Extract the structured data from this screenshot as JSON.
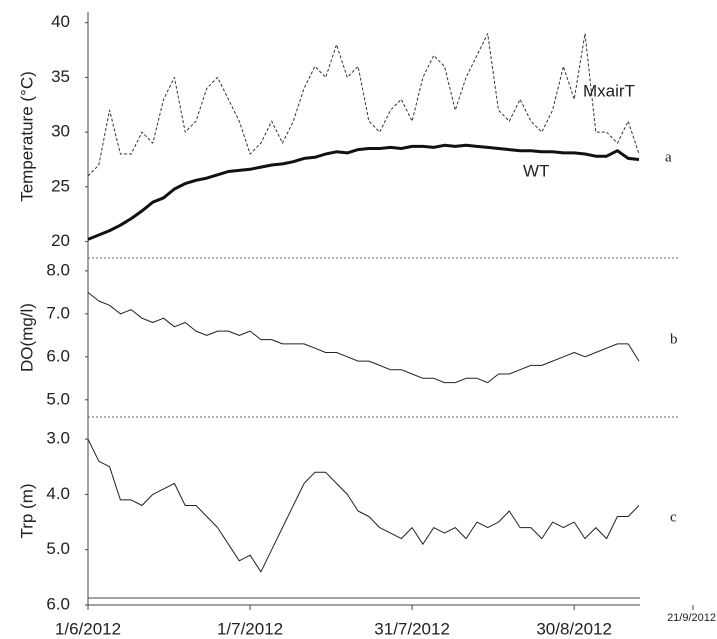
{
  "chart_data": [
    {
      "type": "line",
      "ylabel": "Temperature (°C)",
      "panel_label": "a",
      "x": [
        "2012-06-01",
        "2012-06-03",
        "2012-06-05",
        "2012-06-07",
        "2012-06-09",
        "2012-06-11",
        "2012-06-13",
        "2012-06-15",
        "2012-06-17",
        "2012-06-19",
        "2012-06-21",
        "2012-06-23",
        "2012-06-25",
        "2012-06-27",
        "2012-06-29",
        "2012-07-01",
        "2012-07-03",
        "2012-07-05",
        "2012-07-07",
        "2012-07-09",
        "2012-07-11",
        "2012-07-13",
        "2012-07-15",
        "2012-07-17",
        "2012-07-19",
        "2012-07-21",
        "2012-07-23",
        "2012-07-25",
        "2012-07-27",
        "2012-07-29",
        "2012-07-31",
        "2012-08-02",
        "2012-08-04",
        "2012-08-06",
        "2012-08-08",
        "2012-08-10",
        "2012-08-12",
        "2012-08-14",
        "2012-08-16",
        "2012-08-18",
        "2012-08-20",
        "2012-08-22",
        "2012-08-24",
        "2012-08-26",
        "2012-08-28",
        "2012-08-30",
        "2012-09-01",
        "2012-09-03",
        "2012-09-05",
        "2012-09-07",
        "2012-09-09",
        "2012-09-11"
      ],
      "xlim": [
        "2012-06-01",
        "2012-09-21"
      ],
      "ylim": [
        18.5,
        40.7
      ],
      "yticks": [
        20,
        25,
        30,
        35,
        40
      ],
      "series": [
        {
          "name": "MxairT",
          "color": "#333333",
          "line_style": "dashed",
          "line_width": 1,
          "values": [
            26,
            27,
            32,
            28,
            28,
            30,
            29,
            33,
            35,
            30,
            31,
            34,
            35,
            33,
            31,
            28,
            29,
            31,
            29,
            31,
            34,
            36,
            35,
            38,
            35,
            36,
            31,
            30,
            32,
            33,
            31,
            35,
            37,
            36,
            32,
            35,
            37,
            39,
            32,
            31,
            33,
            31,
            30,
            32,
            36,
            33,
            39,
            30,
            30,
            29,
            31,
            28
          ]
        },
        {
          "name": "WT",
          "color": "#111111",
          "line_style": "solid",
          "line_width": 3,
          "values": [
            20.2,
            20.6,
            21.0,
            21.5,
            22.1,
            22.8,
            23.6,
            24.0,
            24.8,
            25.3,
            25.6,
            25.8,
            26.1,
            26.4,
            26.5,
            26.6,
            26.8,
            27.0,
            27.1,
            27.3,
            27.6,
            27.7,
            28.0,
            28.2,
            28.1,
            28.4,
            28.5,
            28.5,
            28.6,
            28.5,
            28.7,
            28.7,
            28.6,
            28.8,
            28.7,
            28.8,
            28.7,
            28.6,
            28.5,
            28.4,
            28.3,
            28.3,
            28.2,
            28.2,
            28.1,
            28.1,
            28.0,
            27.8,
            27.8,
            28.3,
            27.6,
            27.5
          ]
        }
      ]
    },
    {
      "type": "line",
      "ylabel": "DO(mg/l)",
      "panel_label": "b",
      "x": [
        "2012-06-01",
        "2012-06-03",
        "2012-06-05",
        "2012-06-07",
        "2012-06-09",
        "2012-06-11",
        "2012-06-13",
        "2012-06-15",
        "2012-06-17",
        "2012-06-19",
        "2012-06-21",
        "2012-06-23",
        "2012-06-25",
        "2012-06-27",
        "2012-06-29",
        "2012-07-01",
        "2012-07-03",
        "2012-07-05",
        "2012-07-07",
        "2012-07-09",
        "2012-07-11",
        "2012-07-13",
        "2012-07-15",
        "2012-07-17",
        "2012-07-19",
        "2012-07-21",
        "2012-07-23",
        "2012-07-25",
        "2012-07-27",
        "2012-07-29",
        "2012-07-31",
        "2012-08-02",
        "2012-08-04",
        "2012-08-06",
        "2012-08-08",
        "2012-08-10",
        "2012-08-12",
        "2012-08-14",
        "2012-08-16",
        "2012-08-18",
        "2012-08-20",
        "2012-08-22",
        "2012-08-24",
        "2012-08-26",
        "2012-08-28",
        "2012-08-30",
        "2012-09-01",
        "2012-09-03",
        "2012-09-05",
        "2012-09-07",
        "2012-09-09",
        "2012-09-11"
      ],
      "xlim": [
        "2012-06-01",
        "2012-09-21"
      ],
      "ylim": [
        4.6,
        8.3
      ],
      "yticks": [
        {
          "value": 5,
          "label": "5.0"
        },
        {
          "value": 6,
          "label": "6.0"
        },
        {
          "value": 7,
          "label": "7.0"
        },
        {
          "value": 8,
          "label": "8.0"
        }
      ],
      "series": [
        {
          "color": "#222222",
          "line_style": "solid",
          "line_width": 1,
          "values": [
            7.5,
            7.3,
            7.2,
            7.0,
            7.1,
            6.9,
            6.8,
            6.9,
            6.7,
            6.8,
            6.6,
            6.5,
            6.6,
            6.6,
            6.5,
            6.6,
            6.4,
            6.4,
            6.3,
            6.3,
            6.3,
            6.2,
            6.1,
            6.1,
            6.0,
            5.9,
            5.9,
            5.8,
            5.7,
            5.7,
            5.6,
            5.5,
            5.5,
            5.4,
            5.4,
            5.5,
            5.5,
            5.4,
            5.6,
            5.6,
            5.7,
            5.8,
            5.8,
            5.9,
            6.0,
            6.1,
            6.0,
            6.1,
            6.2,
            6.3,
            6.3,
            5.9
          ]
        }
      ]
    },
    {
      "type": "line",
      "ylabel": "Trp (m)",
      "panel_label": "c",
      "x": [
        "2012-06-01",
        "2012-06-03",
        "2012-06-05",
        "2012-06-07",
        "2012-06-09",
        "2012-06-11",
        "2012-06-13",
        "2012-06-15",
        "2012-06-17",
        "2012-06-19",
        "2012-06-21",
        "2012-06-23",
        "2012-06-25",
        "2012-06-27",
        "2012-06-29",
        "2012-07-01",
        "2012-07-03",
        "2012-07-05",
        "2012-07-07",
        "2012-07-09",
        "2012-07-11",
        "2012-07-13",
        "2012-07-15",
        "2012-07-17",
        "2012-07-19",
        "2012-07-21",
        "2012-07-23",
        "2012-07-25",
        "2012-07-27",
        "2012-07-29",
        "2012-07-31",
        "2012-08-02",
        "2012-08-04",
        "2012-08-06",
        "2012-08-08",
        "2012-08-10",
        "2012-08-12",
        "2012-08-14",
        "2012-08-16",
        "2012-08-18",
        "2012-08-20",
        "2012-08-22",
        "2012-08-24",
        "2012-08-26",
        "2012-08-28",
        "2012-08-30",
        "2012-09-01",
        "2012-09-03",
        "2012-09-05",
        "2012-09-07",
        "2012-09-09",
        "2012-09-11"
      ],
      "xlim": [
        "2012-06-01",
        "2012-09-21"
      ],
      "ylim": [
        2.6,
        6.0
      ],
      "y_inverted": true,
      "yticks": [
        {
          "value": 3,
          "label": "3.0"
        },
        {
          "value": 4,
          "label": "4.0"
        },
        {
          "value": 5,
          "label": "5.0"
        },
        {
          "value": 6,
          "label": "6.0"
        }
      ],
      "xticks": [
        {
          "value": "2012-06-01",
          "label": "1/6/2012"
        },
        {
          "value": "2012-07-01",
          "label": "1/7/2012"
        },
        {
          "value": "2012-07-31",
          "label": "31/7/2012"
        },
        {
          "value": "2012-08-30",
          "label": "30/8/2012"
        },
        {
          "value": "2012-09-21",
          "label": "21/9/2012"
        }
      ],
      "series": [
        {
          "color": "#222222",
          "line_style": "solid",
          "line_width": 1,
          "values": [
            3.0,
            3.4,
            3.5,
            4.1,
            4.1,
            4.2,
            4.0,
            3.9,
            3.8,
            4.2,
            4.2,
            4.4,
            4.6,
            4.9,
            5.2,
            5.1,
            5.4,
            5.0,
            4.6,
            4.2,
            3.8,
            3.6,
            3.6,
            3.8,
            4.0,
            4.3,
            4.4,
            4.6,
            4.7,
            4.8,
            4.6,
            4.9,
            4.6,
            4.7,
            4.6,
            4.8,
            4.5,
            4.6,
            4.5,
            4.3,
            4.6,
            4.6,
            4.8,
            4.5,
            4.6,
            4.5,
            4.8,
            4.6,
            4.8,
            4.4,
            4.4,
            4.2
          ]
        }
      ]
    }
  ]
}
